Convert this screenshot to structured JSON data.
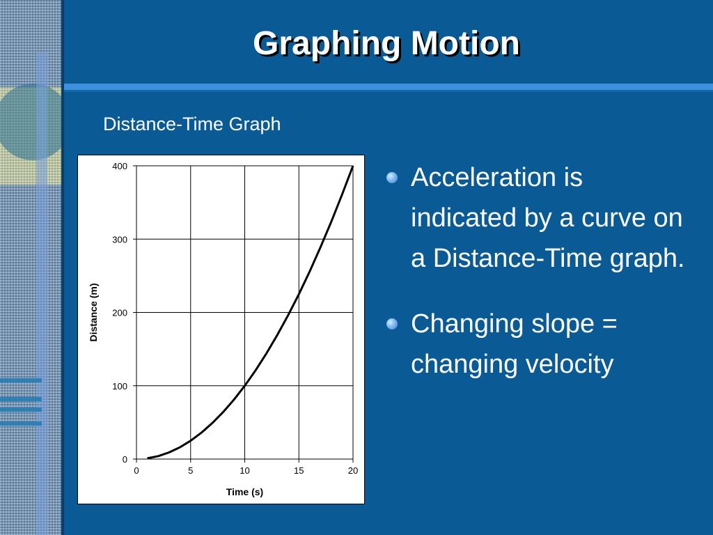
{
  "slide": {
    "title": "Graphing Motion",
    "subtitle": "Distance-Time Graph",
    "bullets": [
      "Acceleration is indicated by a curve on a Distance-Time graph.",
      "Changing slope = changing velocity"
    ]
  },
  "colors": {
    "background": "#0a5a96",
    "accent_rule": "#3d8fe0",
    "bullet": "#7eb8f2",
    "text": "#ffffff"
  },
  "chart_data": {
    "type": "line",
    "title": "",
    "xlabel": "Time (s)",
    "ylabel": "Distance (m)",
    "xlim": [
      0,
      20
    ],
    "ylim": [
      0,
      400
    ],
    "xticks": [
      0,
      5,
      10,
      15,
      20
    ],
    "yticks": [
      0,
      100,
      200,
      300,
      400
    ],
    "grid": true,
    "legend": "none",
    "series": [
      {
        "x": [
          1,
          2,
          3,
          4,
          5,
          6,
          7,
          8,
          9,
          10,
          11,
          12,
          13,
          14,
          15,
          16,
          17,
          18,
          19,
          20
        ],
        "y": [
          1,
          4,
          9,
          16,
          25,
          36,
          49,
          64,
          81,
          100,
          121,
          144,
          169,
          196,
          225,
          256,
          289,
          324,
          361,
          400
        ]
      }
    ]
  }
}
